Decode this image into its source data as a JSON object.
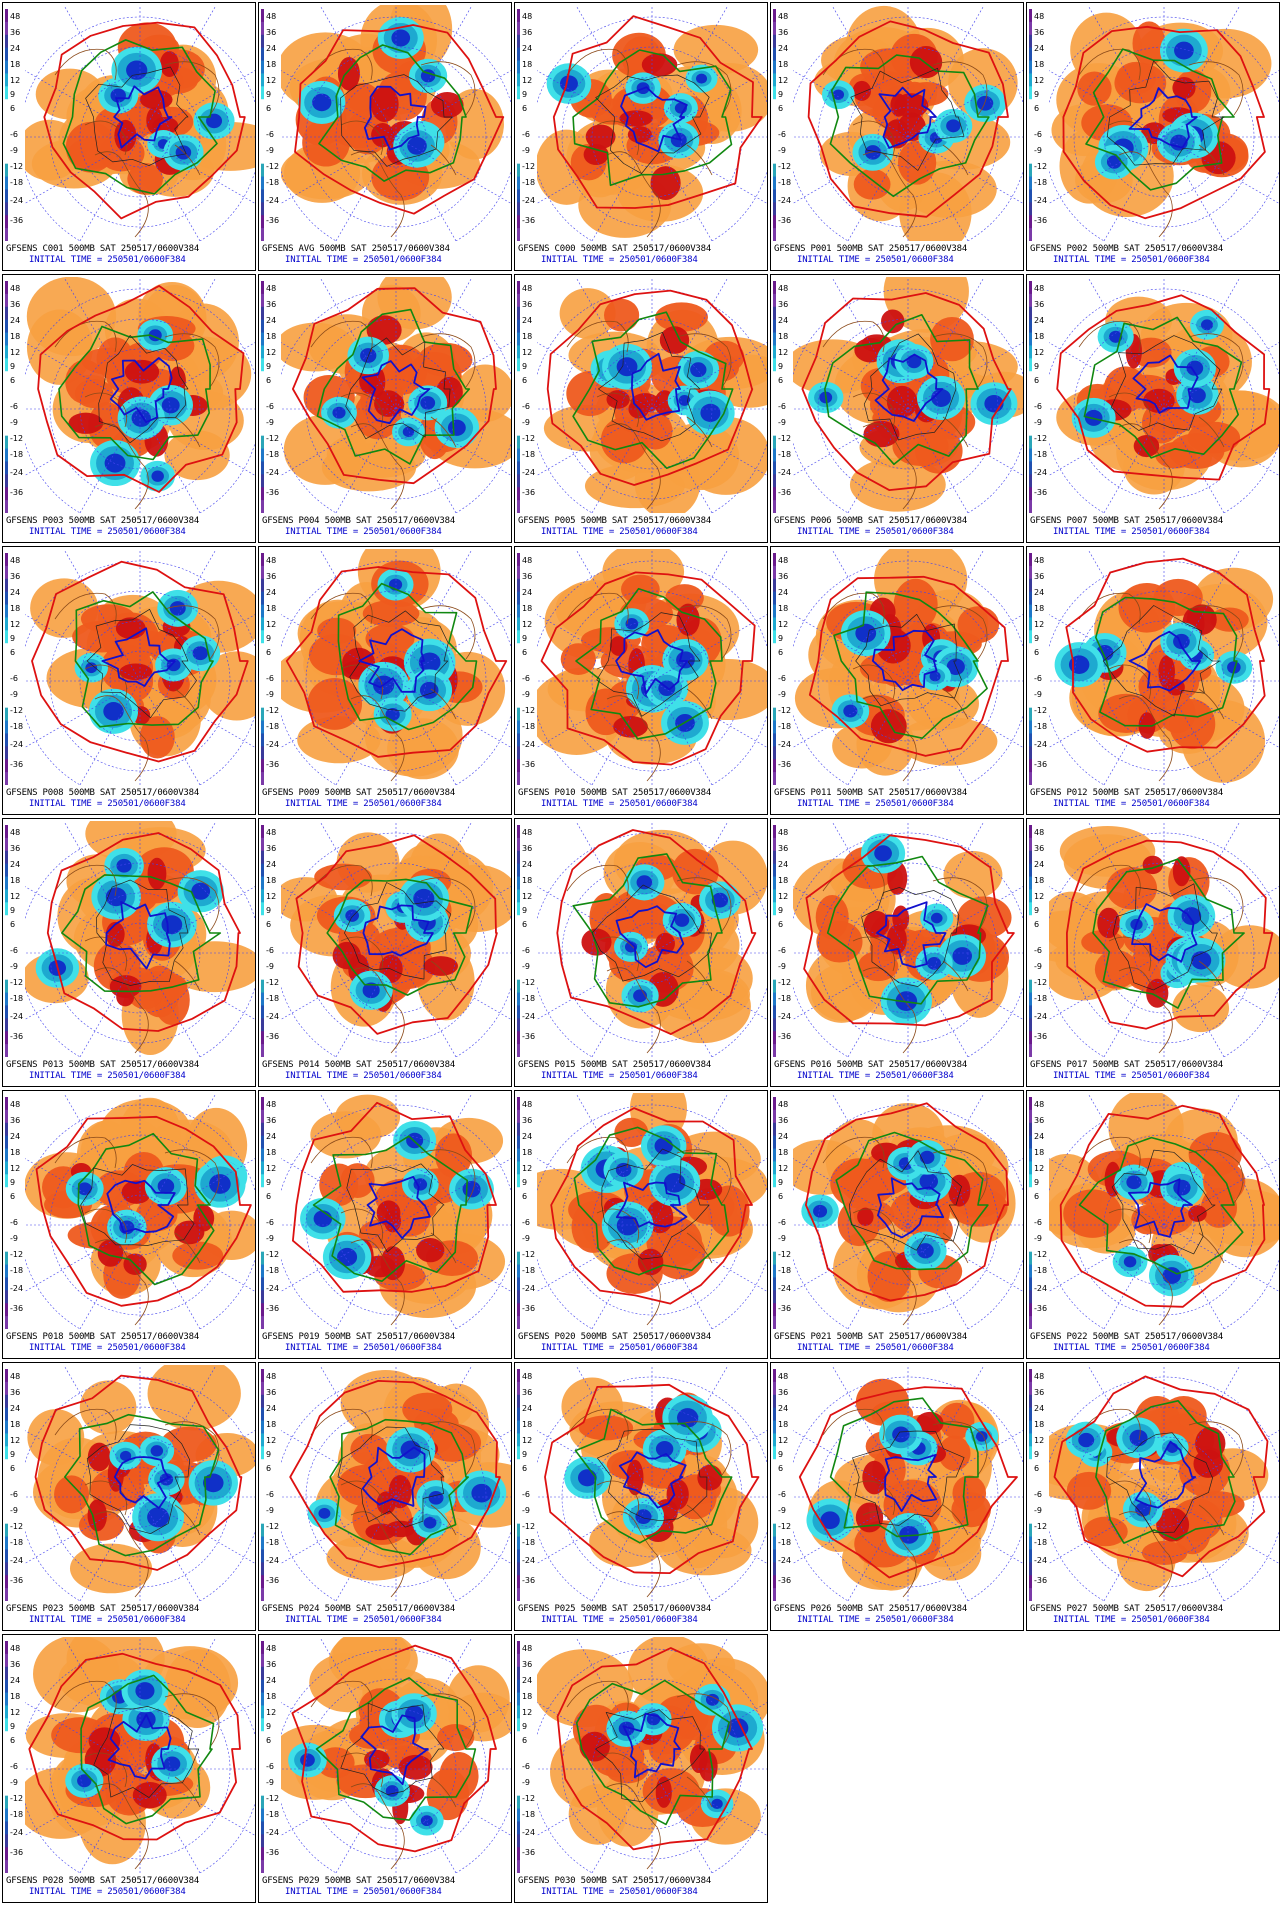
{
  "initial_time_label": "INITIAL TIME = 250501/0600F384",
  "colorbar_ticks": [
    "48",
    "36",
    "24",
    "18",
    "12",
    "9",
    "6",
    "-6",
    "-9",
    "-12",
    "-18",
    "-24",
    "-36"
  ],
  "colors": {
    "warm_light": "#f7a040",
    "warm_mid": "#ee5a1e",
    "warm_dark": "#cc1111",
    "cold_light": "#3fe0e8",
    "cold_mid": "#1ea9d0",
    "cold_dark": "#1030c8",
    "contour_576": "#dd1111",
    "contour_552": "#118811",
    "contour_528": "#1111cc",
    "geography": "#8b4a1a",
    "grid_lines": "#4444ee"
  },
  "panels": [
    {
      "title": "GFSENS C001 500MB SAT 250517/0600V384"
    },
    {
      "title": "GFSENS AVG 500MB SAT 250517/0600V384"
    },
    {
      "title": "GFSENS C000 500MB SAT 250517/0600V384"
    },
    {
      "title": "GFSENS P001 500MB SAT 250517/0600V384"
    },
    {
      "title": "GFSENS P002 500MB SAT 250517/0600V384"
    },
    {
      "title": "GFSENS P003 500MB SAT 250517/0600V384"
    },
    {
      "title": "GFSENS P004 500MB SAT 250517/0600V384"
    },
    {
      "title": "GFSENS P005 500MB SAT 250517/0600V384"
    },
    {
      "title": "GFSENS P006 500MB SAT 250517/0600V384"
    },
    {
      "title": "GFSENS P007 500MB SAT 250517/0600V384"
    },
    {
      "title": "GFSENS P008 500MB SAT 250517/0600V384"
    },
    {
      "title": "GFSENS P009 500MB SAT 250517/0600V384"
    },
    {
      "title": "GFSENS P010 500MB SAT 250517/0600V384"
    },
    {
      "title": "GFSENS P011 500MB SAT 250517/0600V384"
    },
    {
      "title": "GFSENS P012 500MB SAT 250517/0600V384"
    },
    {
      "title": "GFSENS P013 500MB SAT 250517/0600V384"
    },
    {
      "title": "GFSENS P014 500MB SAT 250517/0600V384"
    },
    {
      "title": "GFSENS P015 500MB SAT 250517/0600V384"
    },
    {
      "title": "GFSENS P016 500MB SAT 250517/0600V384"
    },
    {
      "title": "GFSENS P017 500MB SAT 250517/0600V384"
    },
    {
      "title": "GFSENS P018 500MB SAT 250517/0600V384"
    },
    {
      "title": "GFSENS P019 500MB SAT 250517/0600V384"
    },
    {
      "title": "GFSENS P020 500MB SAT 250517/0600V384"
    },
    {
      "title": "GFSENS P021 500MB SAT 250517/0600V384"
    },
    {
      "title": "GFSENS P022 500MB SAT 250517/0600V384"
    },
    {
      "title": "GFSENS P023 500MB SAT 250517/0600V384"
    },
    {
      "title": "GFSENS P024 500MB SAT 250517/0600V384"
    },
    {
      "title": "GFSENS P025 500MB SAT 250517/0600V384"
    },
    {
      "title": "GFSENS P026 500MB SAT 250517/0600V384"
    },
    {
      "title": "GFSENS P027 500MB SAT 250517/0600V384"
    },
    {
      "title": "GFSENS P028 500MB SAT 250517/0600V384"
    },
    {
      "title": "GFSENS P029 500MB SAT 250517/0600V384"
    },
    {
      "title": "GFSENS P030 500MB SAT 250517/0600V384"
    }
  ]
}
